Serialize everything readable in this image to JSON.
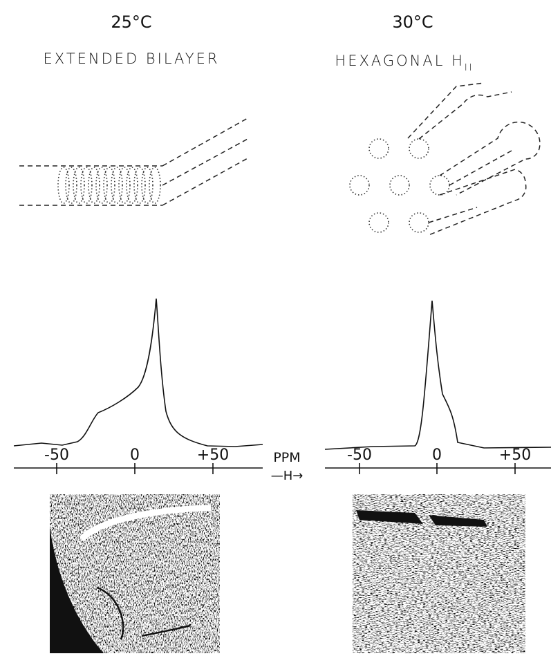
{
  "panels": [
    {
      "temperature": "25°C",
      "phase": "EXTENDED BILAYER",
      "axis_ticks": [
        "-50",
        "0",
        "+50"
      ]
    },
    {
      "temperature": "30°C",
      "phase": "HEXAGONAL H",
      "phase_subscript": "II",
      "axis_ticks": [
        "-50",
        "0",
        "+50"
      ]
    }
  ],
  "axis": {
    "unit": "PPM",
    "field": "—H→"
  }
}
